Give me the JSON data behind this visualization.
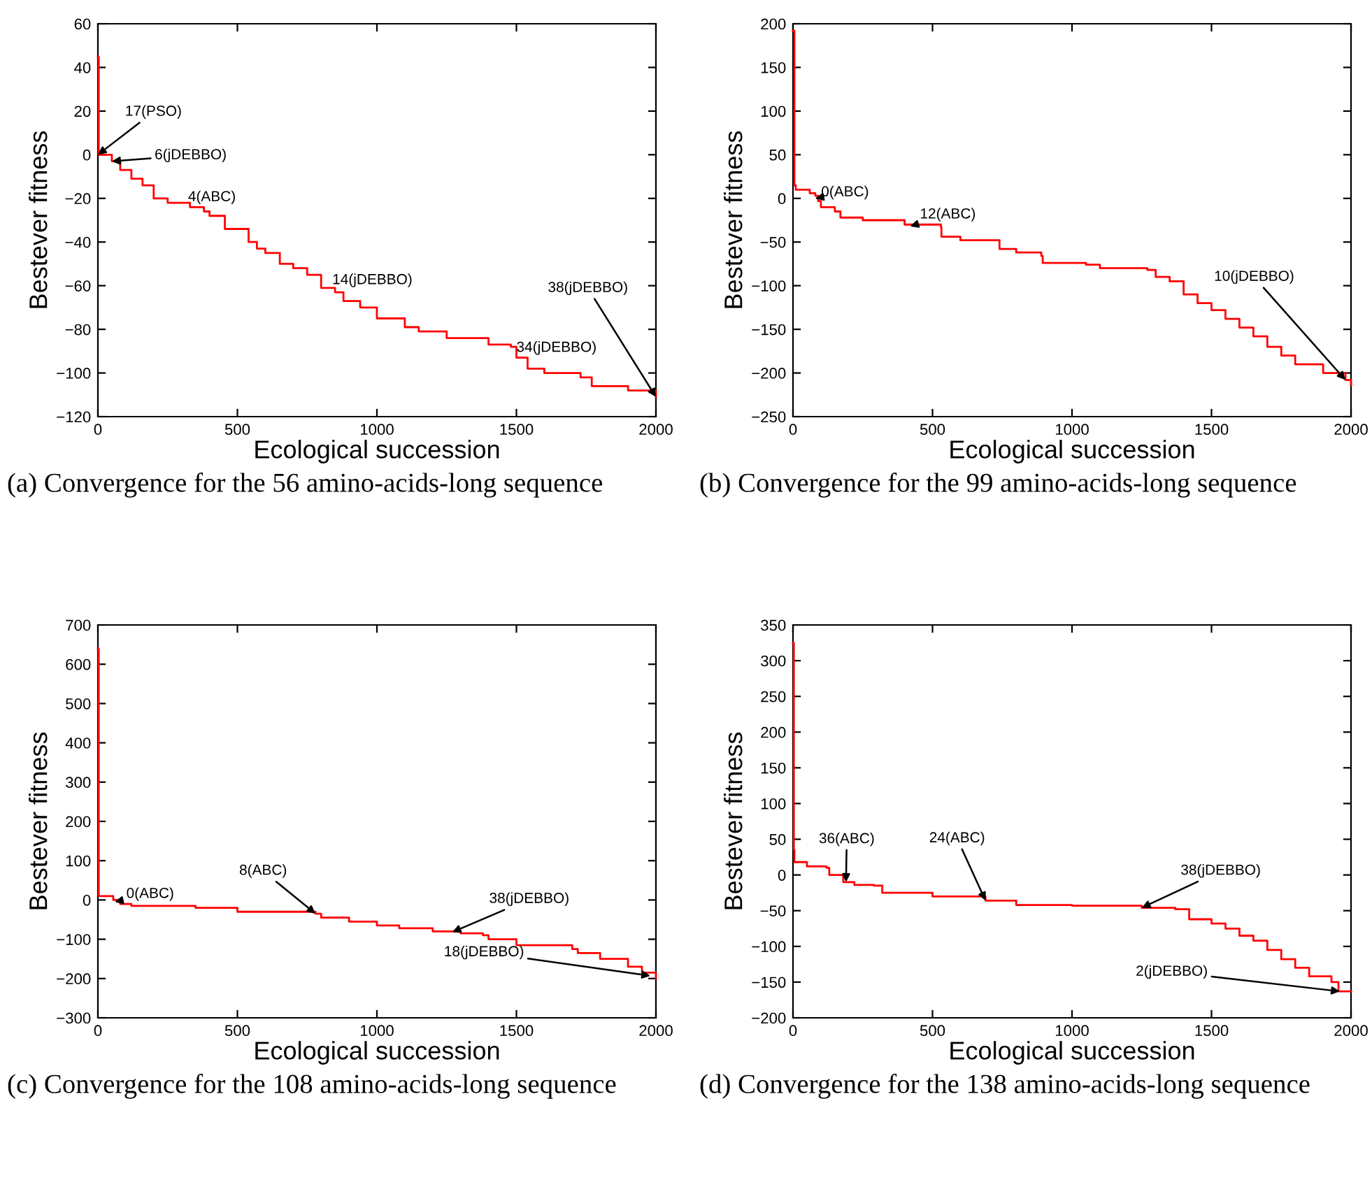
{
  "chart_data": [
    {
      "type": "step",
      "xlabel": "Ecological succession",
      "ylabel": "Bestever fitness",
      "xlim": [
        0,
        2000
      ],
      "ylim": [
        -120,
        60
      ],
      "xticks": [
        0,
        500,
        1000,
        1500,
        2000
      ],
      "yticks": [
        -120,
        -100,
        -80,
        -60,
        -40,
        -20,
        0,
        20,
        40,
        60
      ],
      "grid": false,
      "series": [
        {
          "color": "#ff0000",
          "x": [
            0,
            3,
            30,
            50,
            80,
            120,
            160,
            200,
            250,
            330,
            380,
            400,
            450,
            455,
            520,
            540,
            570,
            600,
            650,
            652,
            700,
            750,
            800,
            850,
            880,
            940,
            1000,
            1080,
            1100,
            1150,
            1250,
            1400,
            1480,
            1500,
            1540,
            1600,
            1730,
            1770,
            1900,
            2000
          ],
          "values": [
            45,
            0,
            0,
            -3,
            -7,
            -11,
            -14,
            -20,
            -22,
            -24,
            -26,
            -28,
            -28,
            -34,
            -34,
            -40,
            -43,
            -45,
            -45,
            -50,
            -52,
            -55,
            -61,
            -63,
            -67,
            -70,
            -75,
            -75,
            -79,
            -81,
            -84,
            -87,
            -88,
            -93,
            -98,
            -100,
            -102,
            -106,
            -108,
            -111
          ]
        }
      ],
      "annotations": [
        {
          "text": "17(PSO)",
          "x": 0,
          "y": 0
        },
        {
          "text": "6(jDEBBO)",
          "x": 50,
          "y": -3
        },
        {
          "text": "4(ABC)",
          "x": 330,
          "y": -24
        },
        {
          "text": "14(jDEBBO)",
          "x": 840,
          "y": -62
        },
        {
          "text": "34(jDEBBO)",
          "x": 1500,
          "y": -93
        },
        {
          "text": "38(jDEBBO)",
          "x": 2000,
          "y": -111
        },
        "(a) Convergence for the 56 amino-acids-long sequence"
      ]
    },
    {
      "type": "step",
      "xlabel": "Ecological succession",
      "ylabel": "Bestever fitness",
      "xlim": [
        0,
        2000
      ],
      "ylim": [
        -250,
        200
      ],
      "xticks": [
        0,
        500,
        1000,
        1500,
        2000
      ],
      "yticks": [
        -250,
        -200,
        -150,
        -100,
        -50,
        0,
        50,
        100,
        150,
        200
      ],
      "grid": false,
      "series": [
        {
          "color": "#ff0000",
          "x": [
            0,
            5,
            10,
            60,
            80,
            90,
            100,
            150,
            170,
            250,
            400,
            530,
            532,
            600,
            730,
            740,
            800,
            890,
            895,
            1050,
            1100,
            1270,
            1300,
            1350,
            1400,
            1450,
            1500,
            1550,
            1600,
            1650,
            1700,
            1750,
            1800,
            1900,
            1980,
            2000
          ],
          "values": [
            192,
            15,
            10,
            6,
            3,
            -3,
            -10,
            -15,
            -22,
            -25,
            -30,
            -33,
            -44,
            -48,
            -48,
            -58,
            -62,
            -66,
            -74,
            -76,
            -80,
            -82,
            -90,
            -95,
            -110,
            -120,
            -128,
            -138,
            -148,
            -158,
            -170,
            -180,
            -190,
            -200,
            -208,
            -214
          ]
        }
      ],
      "annotations": [
        {
          "text": "0(ABC)",
          "x": 80,
          "y": 0
        },
        {
          "text": "12(ABC)",
          "x": 420,
          "y": -32
        },
        {
          "text": "10(jDEBBO)",
          "x": 1980,
          "y": -208
        },
        "(b) Convergence for the 99 amino-acids-long sequence"
      ]
    },
    {
      "type": "step",
      "xlabel": "Ecological succession",
      "ylabel": "Bestever fitness",
      "xlim": [
        0,
        2000
      ],
      "ylim": [
        -300,
        700
      ],
      "xticks": [
        0,
        500,
        1000,
        1500,
        2000
      ],
      "yticks": [
        -300,
        -200,
        -100,
        0,
        100,
        200,
        300,
        400,
        500,
        600,
        700
      ],
      "grid": false,
      "series": [
        {
          "color": "#ff0000",
          "x": [
            0,
            3,
            50,
            55,
            80,
            120,
            350,
            500,
            780,
            800,
            900,
            1000,
            1080,
            1200,
            1300,
            1380,
            1400,
            1500,
            1700,
            1720,
            1800,
            1900,
            1950,
            2000
          ],
          "values": [
            640,
            10,
            10,
            0,
            -10,
            -15,
            -20,
            -30,
            -35,
            -45,
            -55,
            -65,
            -72,
            -80,
            -85,
            -90,
            -100,
            -115,
            -125,
            -135,
            -150,
            -170,
            -185,
            -200
          ]
        }
      ],
      "annotations": [
        {
          "text": "0(ABC)",
          "x": 60,
          "y": -5
        },
        {
          "text": "8(ABC)",
          "x": 780,
          "y": -35
        },
        {
          "text": "38(jDEBBO)",
          "x": 1270,
          "y": -82
        },
        {
          "text": "18(jDEBBO)",
          "x": 1980,
          "y": -193
        },
        "(c) Convergence for the 108 amino-acids-long sequence"
      ]
    },
    {
      "type": "step",
      "xlabel": "Ecological succession",
      "ylabel": "Bestever fitness",
      "xlim": [
        0,
        2000
      ],
      "ylim": [
        -200,
        350
      ],
      "xticks": [
        0,
        500,
        1000,
        1500,
        2000
      ],
      "yticks": [
        -200,
        -150,
        -100,
        -50,
        0,
        50,
        100,
        150,
        200,
        250,
        300,
        350
      ],
      "grid": false,
      "series": [
        {
          "color": "#ff0000",
          "x": [
            0,
            3,
            5,
            50,
            120,
            130,
            180,
            220,
            290,
            320,
            500,
            690,
            800,
            1000,
            1250,
            1370,
            1420,
            1500,
            1550,
            1600,
            1650,
            1700,
            1750,
            1800,
            1850,
            1930,
            1955,
            2000
          ],
          "values": [
            325,
            35,
            18,
            12,
            10,
            0,
            -10,
            -14,
            -15,
            -25,
            -30,
            -36,
            -42,
            -43,
            -46,
            -48,
            -62,
            -68,
            -75,
            -85,
            -92,
            -105,
            -118,
            -130,
            -142,
            -150,
            -163,
            -163
          ]
        }
      ],
      "annotations": [
        {
          "text": "36(ABC)",
          "x": 190,
          "y": -10
        },
        {
          "text": "24(ABC)",
          "x": 690,
          "y": -36
        },
        {
          "text": "38(jDEBBO)",
          "x": 1250,
          "y": -46
        },
        {
          "text": "2(jDEBBO)",
          "x": 1960,
          "y": -163
        },
        "(d) Convergence for the 138 amino-acids-long sequence"
      ]
    }
  ]
}
